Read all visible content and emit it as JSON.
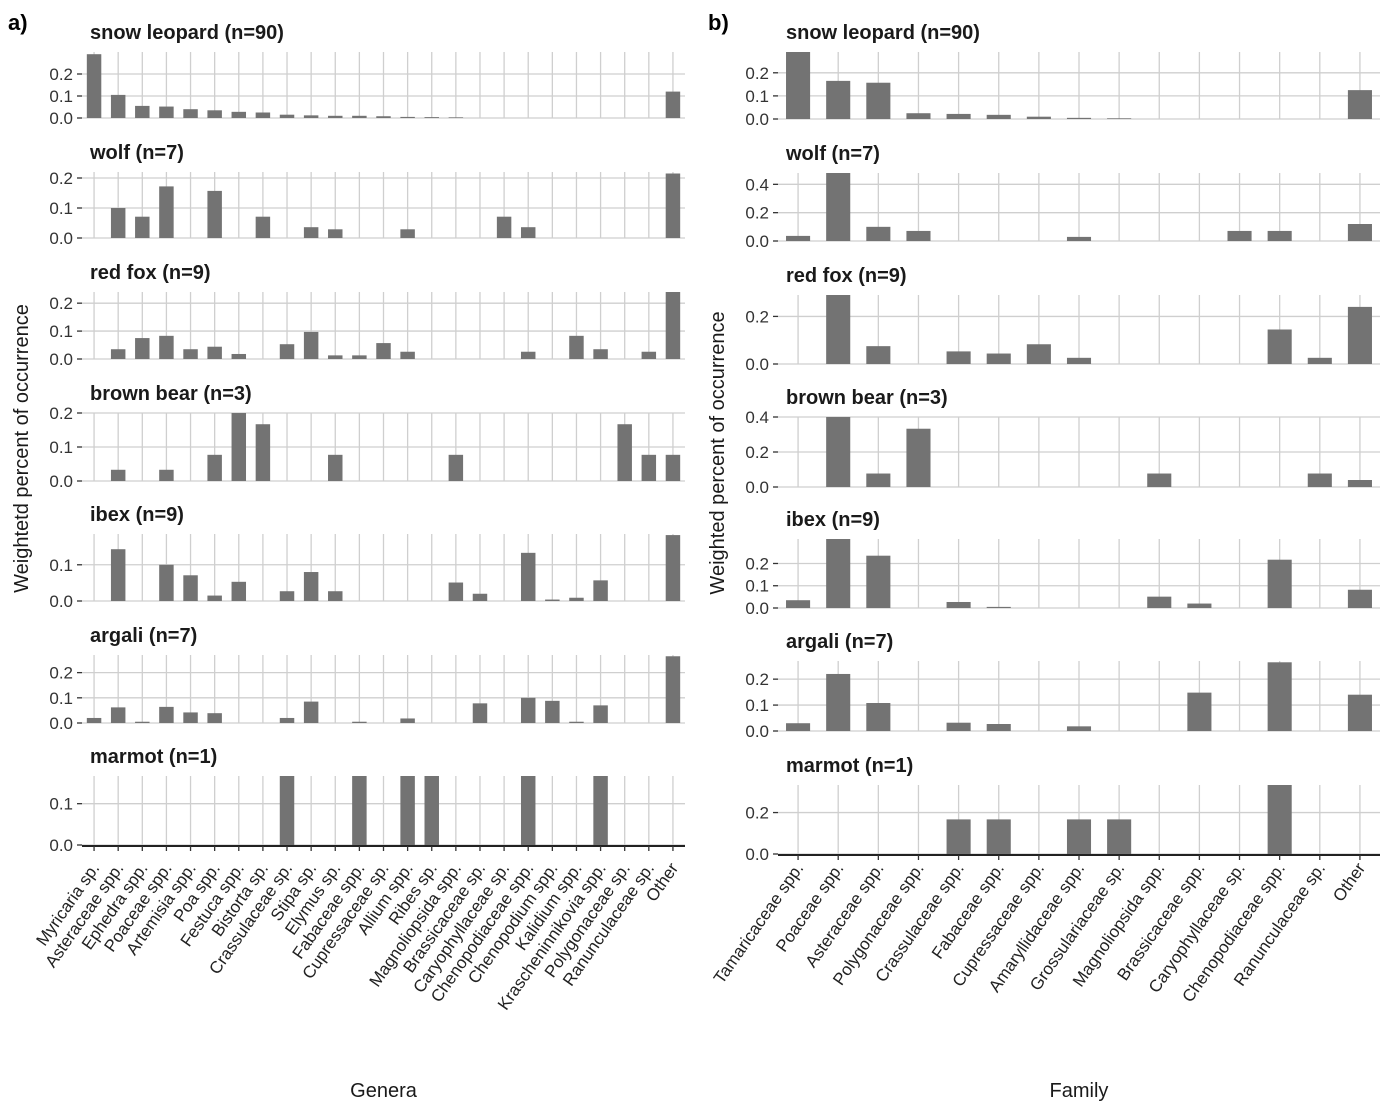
{
  "chart_data": [
    {
      "type": "bar",
      "panel_label": "a)",
      "xlabel": "Genera",
      "ylabel": "Weightetd percent of occurrence",
      "grid": true,
      "categories": [
        "Myricaria sp.",
        "Asteraceae spp.",
        "Ephedra spp.",
        "Poaceae spp.",
        "Artemisia spp.",
        "Poa spp.",
        "Festuca spp.",
        "Bistorta sp.",
        "Crassulaceae sp.",
        "Stipa sp.",
        "Elymus sp.",
        "Fabaceae spp.",
        "Cupressaceae sp.",
        "Allium spp.",
        "Ribes sp.",
        "Magnoliopsida spp.",
        "Brassicaceae sp.",
        "Caryophyllaceae sp.",
        "Chenopodiaceae spp.",
        "Chenopodium spp.",
        "Kalidium spp.",
        "Krascheninnikovia spp.",
        "Polygonaceae sp.",
        "Ranunculaceae sp.",
        "Other"
      ],
      "facets": [
        {
          "title": "snow leopard (n=90)",
          "ylim": [
            0,
            0.3
          ],
          "yticks": [
            0.0,
            0.1,
            0.2
          ],
          "ytick_labels": [
            "0.0",
            "0.1",
            "0.2"
          ],
          "values": [
            0.29,
            0.105,
            0.055,
            0.052,
            0.04,
            0.035,
            0.028,
            0.025,
            0.015,
            0.012,
            0.01,
            0.01,
            0.008,
            0.005,
            0.004,
            0.003,
            0,
            0,
            0,
            0,
            0,
            0,
            0,
            0,
            0.12
          ]
        },
        {
          "title": "wolf (n=7)",
          "ylim": [
            0,
            0.22
          ],
          "yticks": [
            0.0,
            0.1,
            0.2
          ],
          "ytick_labels": [
            "0.0",
            "0.1",
            "0.2"
          ],
          "values": [
            0,
            0.1,
            0.071,
            0.172,
            0,
            0.157,
            0,
            0.071,
            0,
            0.036,
            0.029,
            0,
            0,
            0.029,
            0,
            0,
            0,
            0.071,
            0.036,
            0,
            0,
            0,
            0,
            0,
            0.215
          ]
        },
        {
          "title": "red fox (n=9)",
          "ylim": [
            0,
            0.24
          ],
          "yticks": [
            0.0,
            0.1,
            0.2
          ],
          "ytick_labels": [
            "0.0",
            "0.1",
            "0.2"
          ],
          "values": [
            0,
            0.035,
            0.075,
            0.083,
            0.035,
            0.044,
            0.018,
            0,
            0.053,
            0.097,
            0.013,
            0.013,
            0.057,
            0.026,
            0,
            0,
            0,
            0,
            0.026,
            0,
            0.083,
            0.035,
            0,
            0.026,
            0.24
          ]
        },
        {
          "title": "brown bear (n=3)",
          "ylim": [
            0,
            0.2
          ],
          "yticks": [
            0.0,
            0.1,
            0.2
          ],
          "ytick_labels": [
            "0.0",
            "0.1",
            "0.2"
          ],
          "values": [
            0,
            0.033,
            0,
            0.033,
            0,
            0.077,
            0.2,
            0.167,
            0,
            0,
            0.077,
            0,
            0,
            0,
            0,
            0.077,
            0,
            0,
            0,
            0,
            0,
            0,
            0.167,
            0.077,
            0.077
          ]
        },
        {
          "title": "ibex (n=9)",
          "ylim": [
            0,
            0.185
          ],
          "yticks": [
            0.0,
            0.1
          ],
          "ytick_labels": [
            "0.0",
            "0.1"
          ],
          "values": [
            0,
            0.143,
            0,
            0.1,
            0.071,
            0.015,
            0.053,
            0,
            0.027,
            0.08,
            0.027,
            0,
            0,
            0,
            0,
            0.051,
            0.02,
            0,
            0.133,
            0.004,
            0.009,
            0.057,
            0,
            0,
            0.182
          ]
        },
        {
          "title": "argali (n=7)",
          "ylim": [
            0,
            0.27
          ],
          "yticks": [
            0.0,
            0.1,
            0.2
          ],
          "ytick_labels": [
            "0.0",
            "0.1",
            "0.2"
          ],
          "values": [
            0.02,
            0.062,
            0.005,
            0.064,
            0.042,
            0.039,
            0,
            0,
            0.02,
            0.085,
            0,
            0.005,
            0,
            0.018,
            0,
            0,
            0.078,
            0,
            0.1,
            0.088,
            0.005,
            0.07,
            0,
            0,
            0.265
          ]
        },
        {
          "title": "marmot (n=1)",
          "ylim": [
            0,
            0.167
          ],
          "yticks": [
            0.0,
            0.1
          ],
          "ytick_labels": [
            "0.0",
            "0.1"
          ],
          "values": [
            0,
            0,
            0,
            0,
            0,
            0,
            0,
            0,
            0.167,
            0,
            0,
            0.167,
            0,
            0.167,
            0.167,
            0,
            0,
            0,
            0.167,
            0,
            0,
            0.167,
            0,
            0,
            0
          ]
        }
      ]
    },
    {
      "type": "bar",
      "panel_label": "b)",
      "xlabel": "Family",
      "ylabel": "Weighted percent of occurrence",
      "grid": true,
      "categories": [
        "Tamaricaceae spp.",
        "Poaceae spp.",
        "Asteraceae spp.",
        "Polygonaceae spp.",
        "Crassulaceae spp.",
        "Fabaceae spp.",
        "Cupressaceae spp.",
        "Amaryllidaceae spp.",
        "Grossulariaceae sp.",
        "Magnoliopsida spp.",
        "Brassicaceae spp.",
        "Caryophyllaceae sp.",
        "Chenopodiaceae spp.",
        "Ranunculaceae sp.",
        "Other"
      ],
      "facets": [
        {
          "title": "snow leopard (n=90)",
          "ylim": [
            0,
            0.29
          ],
          "yticks": [
            0.0,
            0.1,
            0.2
          ],
          "ytick_labels": [
            "0.0",
            "0.1",
            "0.2"
          ],
          "values": [
            0.29,
            0.165,
            0.157,
            0.025,
            0.022,
            0.018,
            0.01,
            0.005,
            0.003,
            0,
            0,
            0,
            0,
            0,
            0.125
          ]
        },
        {
          "title": "wolf (n=7)",
          "ylim": [
            0,
            0.48
          ],
          "yticks": [
            0.0,
            0.2,
            0.4
          ],
          "ytick_labels": [
            "0.0",
            "0.2",
            "0.4"
          ],
          "values": [
            0.036,
            0.48,
            0.1,
            0.071,
            0,
            0,
            0,
            0.029,
            0,
            0,
            0,
            0.071,
            0.071,
            0,
            0.12
          ]
        },
        {
          "title": "red fox (n=9)",
          "ylim": [
            0,
            0.29
          ],
          "yticks": [
            0.0,
            0.2
          ],
          "ytick_labels": [
            "0.0",
            "0.2"
          ],
          "values": [
            0,
            0.29,
            0.075,
            0,
            0.053,
            0.044,
            0.083,
            0.026,
            0,
            0,
            0,
            0,
            0.145,
            0.026,
            0.24
          ]
        },
        {
          "title": "brown bear (n=3)",
          "ylim": [
            0,
            0.4
          ],
          "yticks": [
            0.0,
            0.2,
            0.4
          ],
          "ytick_labels": [
            "0.0",
            "0.2",
            "0.4"
          ],
          "values": [
            0,
            0.4,
            0.077,
            0.333,
            0,
            0,
            0,
            0,
            0,
            0.077,
            0,
            0,
            0,
            0.077,
            0.04
          ]
        },
        {
          "title": "ibex (n=9)",
          "ylim": [
            0,
            0.31
          ],
          "yticks": [
            0.0,
            0.1,
            0.2
          ],
          "ytick_labels": [
            "0.0",
            "0.1",
            "0.2"
          ],
          "values": [
            0.035,
            0.31,
            0.235,
            0,
            0.027,
            0.005,
            0,
            0,
            0,
            0.051,
            0.02,
            0,
            0.217,
            0,
            0.082
          ]
        },
        {
          "title": "argali (n=7)",
          "ylim": [
            0,
            0.27
          ],
          "yticks": [
            0.0,
            0.1,
            0.2
          ],
          "ytick_labels": [
            "0.0",
            "0.1",
            "0.2"
          ],
          "values": [
            0.03,
            0.22,
            0.108,
            0,
            0.032,
            0.027,
            0,
            0.018,
            0,
            0,
            0.148,
            0,
            0.265,
            0,
            0.14
          ]
        },
        {
          "title": "marmot (n=1)",
          "ylim": [
            0,
            0.333
          ],
          "yticks": [
            0.0,
            0.2
          ],
          "ytick_labels": [
            "0.0",
            "0.2"
          ],
          "values": [
            0,
            0,
            0,
            0,
            0.167,
            0.167,
            0,
            0.167,
            0.167,
            0,
            0,
            0,
            0.333,
            0,
            0
          ]
        }
      ]
    }
  ]
}
